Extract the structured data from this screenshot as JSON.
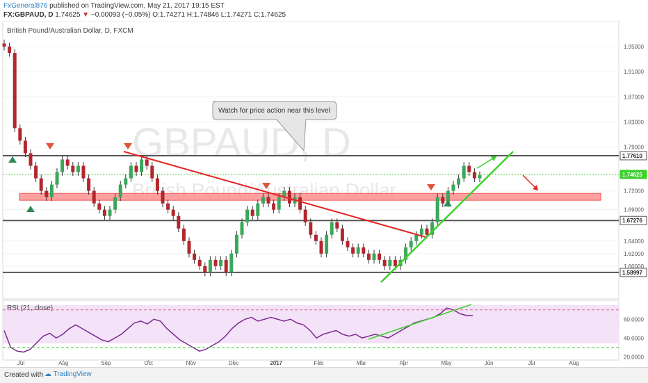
{
  "header": {
    "author": "FxGeneral876",
    "published": "published on TradingView.com, May 21, 2017 19:15 EST",
    "symbol": "FX:GBPAUD, D",
    "price": "1.74625",
    "change": "−0.00093 (−0.05%)",
    "ohlc": "O:1.74271 H:1.74846 L:1.74271 C:1.74625"
  },
  "chart_title": "British Pound/Australian Dollar, D, FXCM",
  "watermark": {
    "main": "GBPAUD, D",
    "sub": "British Pound/Australian Dollar"
  },
  "annotation": "Watch for price action near this level",
  "footer": {
    "created_with": "Created with",
    "brand": "TradingView"
  },
  "chart_data": [
    {
      "type": "candlestick",
      "title": "British Pound/Australian Dollar, D, FXCM",
      "x_ticks": [
        "Jul",
        "Aug",
        "Sep",
        "Oct",
        "Nov",
        "Dec",
        "2017",
        "Feb",
        "Mar",
        "Apr",
        "May",
        "Jun",
        "Jul",
        "Aug"
      ],
      "y_ticks": [
        "1.95000",
        "1.91000",
        "1.87000",
        "1.83000",
        "1.79000",
        "1.72000",
        "1.69000",
        "1.67000",
        "1.64000",
        "1.62000",
        "1.60000"
      ],
      "ylim": [
        1.55,
        1.98
      ],
      "price_labels": [
        {
          "text": "1.77610",
          "value": 1.7761,
          "kind": "level"
        },
        {
          "text": "1.74625",
          "value": 1.74625,
          "kind": "last"
        },
        {
          "text": "1.67276",
          "value": 1.67276,
          "kind": "level"
        },
        {
          "text": "1.58997",
          "value": 1.58997,
          "kind": "level"
        }
      ],
      "horizontal_levels": [
        1.7761,
        1.67276,
        1.58997
      ],
      "zone": [
        1.705,
        1.716
      ],
      "close_series": [
        1.95,
        1.94,
        1.82,
        1.8,
        1.78,
        1.76,
        1.74,
        1.72,
        1.71,
        1.73,
        1.75,
        1.77,
        1.76,
        1.75,
        1.76,
        1.74,
        1.72,
        1.7,
        1.69,
        1.68,
        1.69,
        1.71,
        1.73,
        1.74,
        1.76,
        1.75,
        1.77,
        1.76,
        1.74,
        1.72,
        1.7,
        1.69,
        1.68,
        1.66,
        1.64,
        1.62,
        1.61,
        1.6,
        1.59,
        1.61,
        1.6,
        1.61,
        1.59,
        1.62,
        1.65,
        1.67,
        1.69,
        1.68,
        1.7,
        1.71,
        1.7,
        1.69,
        1.71,
        1.72,
        1.7,
        1.71,
        1.69,
        1.67,
        1.65,
        1.64,
        1.62,
        1.65,
        1.67,
        1.66,
        1.64,
        1.63,
        1.62,
        1.63,
        1.62,
        1.61,
        1.62,
        1.61,
        1.6,
        1.61,
        1.6,
        1.61,
        1.63,
        1.64,
        1.65,
        1.66,
        1.65,
        1.67,
        1.71,
        1.7,
        1.72,
        1.73,
        1.74,
        1.76,
        1.75,
        1.74,
        1.745
      ]
    },
    {
      "type": "line",
      "title": "RSI (21, close)",
      "y_ticks": [
        "60.0000",
        "40.0000",
        "20.0000"
      ],
      "ylim": [
        18,
        75
      ],
      "bands": [
        70,
        30
      ],
      "values": [
        48,
        30,
        26,
        25,
        28,
        35,
        42,
        45,
        40,
        44,
        50,
        54,
        50,
        46,
        42,
        38,
        36,
        40,
        44,
        50,
        56,
        58,
        55,
        60,
        58,
        50,
        44,
        38,
        34,
        30,
        26,
        28,
        32,
        36,
        42,
        50,
        56,
        60,
        62,
        58,
        60,
        62,
        60,
        58,
        60,
        56,
        54,
        48,
        40,
        44,
        46,
        48,
        44,
        42,
        44,
        40,
        42,
        44,
        42,
        40,
        44,
        48,
        52,
        56,
        58,
        60,
        62,
        66,
        72,
        70,
        66,
        64,
        64
      ]
    }
  ],
  "time_axis": {
    "labels": [
      "Jul",
      "Aug",
      "Sep",
      "Oct",
      "Nov",
      "Dec",
      "2017",
      "Feb",
      "Mar",
      "Apr",
      "May",
      "Jun",
      "Jul",
      "Aug"
    ]
  }
}
